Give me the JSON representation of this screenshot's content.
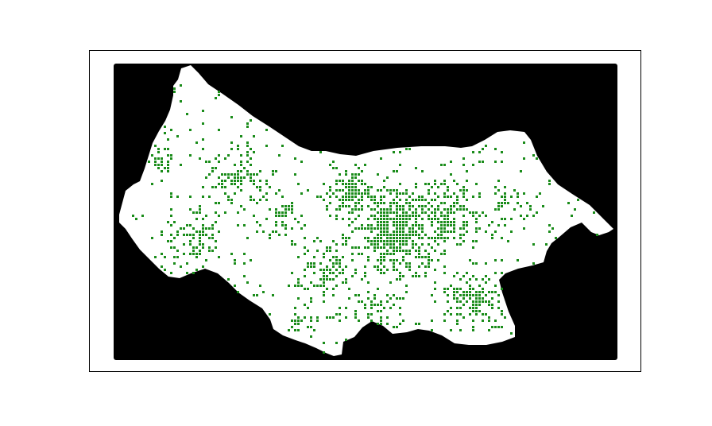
{
  "map": {
    "background_color": "#000000",
    "region_color": "#ffffff",
    "marker_color": "#1a8c1a",
    "frame_color": "#000000",
    "marker_shape": "square"
  }
}
